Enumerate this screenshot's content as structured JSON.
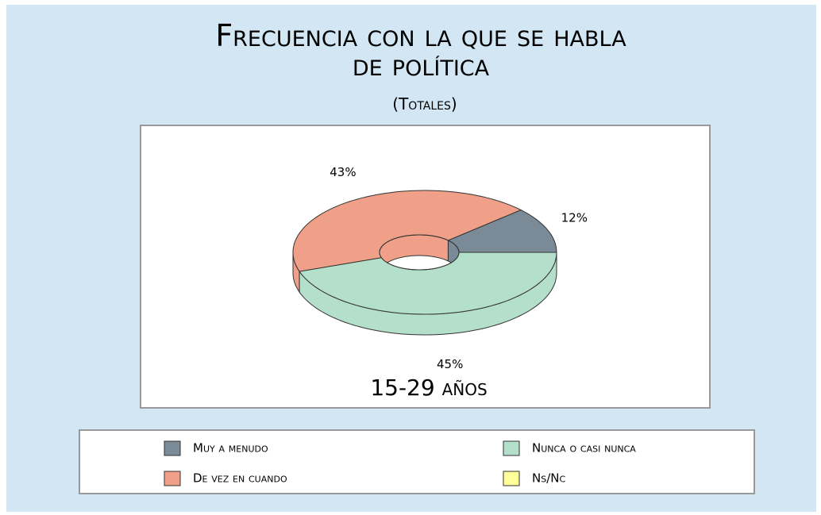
{
  "chart_data": {
    "type": "donut3d",
    "title_lines": [
      "Frecuencia con la que se habla",
      "de política"
    ],
    "subtitle": "(Totales)",
    "inner_label": "15-29 años",
    "categories": [
      "Muy a menudo",
      "De vez en cuando",
      "Nunca o casi nunca",
      "Ns/Nc"
    ],
    "values": [
      12,
      43,
      45,
      0
    ],
    "value_labels": [
      "12%",
      "43%",
      "45%",
      null
    ],
    "colors": [
      "#7a8a96",
      "#f0a088",
      "#b4dfca",
      "#ffff99"
    ]
  }
}
